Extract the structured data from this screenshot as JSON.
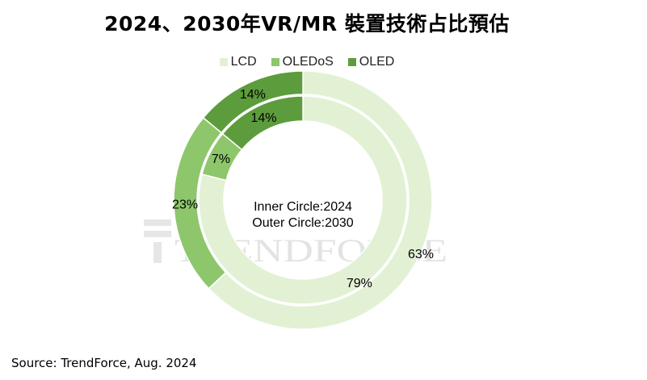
{
  "title": "2024、2030年VR/MR 裝置技術占比預估",
  "source": "Source: TrendForce, Aug. 2024",
  "watermark": "TRENDFORCE",
  "center_lines": [
    "Inner Circle:2024",
    "Outer Circle:2030"
  ],
  "colors": {
    "LCD": "#e2f1d4",
    "OLEDoS": "#8dc66b",
    "OLED": "#5c9c3c",
    "stroke": "#ffffff"
  },
  "chart_data": {
    "type": "donut",
    "title": "2024、2030年VR/MR 裝置技術占比預估",
    "categories": [
      "LCD",
      "OLEDoS",
      "OLED"
    ],
    "series": [
      {
        "name": "2024",
        "ring": "inner",
        "values": [
          79,
          7,
          14
        ],
        "labels": [
          "79%",
          "7%",
          "14%"
        ]
      },
      {
        "name": "2030",
        "ring": "outer",
        "values": [
          63,
          23,
          14
        ],
        "labels": [
          "63%",
          "23%",
          "14%"
        ]
      }
    ],
    "legend": "top-center"
  }
}
